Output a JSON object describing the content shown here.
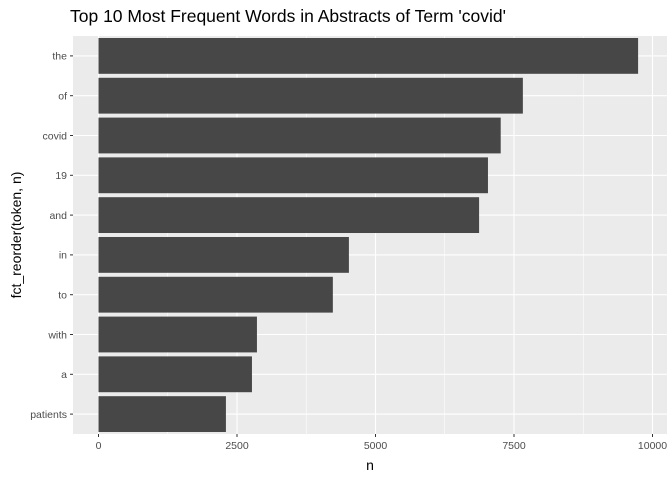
{
  "chart_data": {
    "type": "bar",
    "orientation": "horizontal",
    "title": "Top 10 Most Frequent Words in Abstracts of Term 'covid'",
    "xlabel": "n",
    "ylabel": "fct_reorder(token, n)",
    "categories": [
      "the",
      "of",
      "covid",
      "19",
      "and",
      "in",
      "to",
      "with",
      "a",
      "patients"
    ],
    "values": [
      9740,
      7660,
      7260,
      7030,
      6870,
      4520,
      4230,
      2860,
      2770,
      2300
    ],
    "xlim": [
      0,
      10000
    ],
    "xticks": [
      0,
      2500,
      5000,
      7500,
      10000
    ],
    "xtick_labels": [
      "0",
      "2500",
      "5000",
      "7500",
      "10000"
    ],
    "grid": true,
    "colors": {
      "bar": "#474747",
      "panel": "#ebebeb",
      "grid_major": "#ffffff",
      "tick": "#333333",
      "tick_text": "#4d4d4d"
    }
  }
}
